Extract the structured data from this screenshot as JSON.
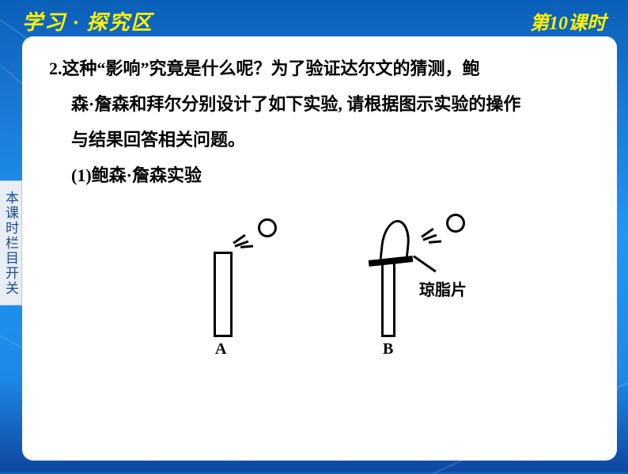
{
  "header": {
    "left": "学习 · 探究区",
    "right": "第10课时"
  },
  "sidebar": {
    "text": "本课时栏目开关"
  },
  "question": {
    "number": "2.",
    "line1": "这种“影响”究竟是什么呢？为了验证达尔文的猜测，鲍",
    "line2": "森·詹森和拜尔分别设计了如下实验, 请根据图示实验的操作",
    "line3": "与结果回答相关问题。",
    "sub1": "(1)鲍森·詹森实验"
  },
  "diagram": {
    "labelA": "A",
    "labelB": "B",
    "agarLabel": "琼脂片"
  },
  "colors": {
    "header_text": "#fff200",
    "content_bg": "#ffffff",
    "sidebar_bg": "#e8eef4",
    "sidebar_text": "#1a4d8f",
    "diagram_stroke": "#000000"
  }
}
